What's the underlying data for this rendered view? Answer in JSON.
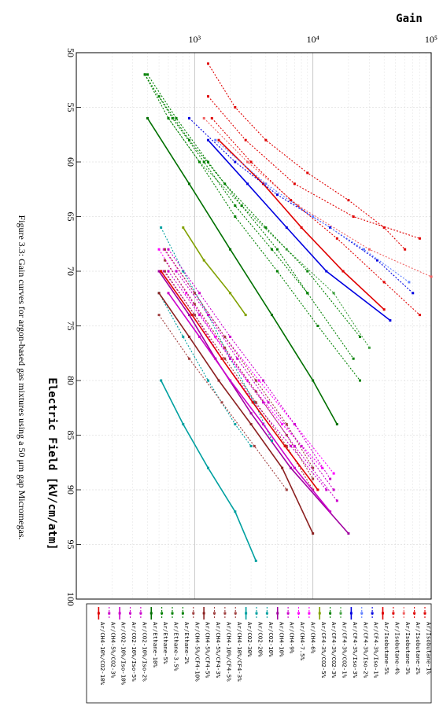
{
  "figure": {
    "caption": "Figure 3.3: Gain curves for argon-based gas mixtures using a 50 μm gap Micromegas."
  },
  "chart_data": {
    "type": "line",
    "xlabel": "Electric Field [kV/cm/atm]",
    "ylabel": "Gain",
    "xlim": [
      50,
      100
    ],
    "ylim": [
      100,
      100000
    ],
    "yscale": "log",
    "x_ticks": [
      "50",
      "55",
      "60",
      "65",
      "70",
      "75",
      "80",
      "85",
      "90",
      "95",
      "100"
    ],
    "y_ticks": [
      "10³",
      "10⁴",
      "10⁵"
    ],
    "grid": true,
    "legend_position": "right",
    "series": [
      {
        "name": "Ar/Isobutane-1%",
        "color": "#e00000",
        "style": "dotted",
        "x": [
          51,
          55,
          58,
          61,
          63.5,
          66,
          68
        ],
        "y": [
          1300,
          2200,
          4000,
          9000,
          20000,
          40000,
          60000
        ]
      },
      {
        "name": "Ar/Isobutane-2%",
        "color": "#e00000",
        "style": "dotted",
        "x": [
          54,
          58,
          62,
          65,
          67
        ],
        "y": [
          1300,
          2700,
          7000,
          22000,
          80000
        ]
      },
      {
        "name": "Ar/Isobutane-3%",
        "color": "#f06060",
        "style": "dotted",
        "x": [
          56,
          60,
          64,
          68,
          70.5
        ],
        "y": [
          1200,
          2800,
          7500,
          30000,
          100000
        ]
      },
      {
        "name": "Ar/Isobutane-4%",
        "color": "#e00000",
        "style": "dotted",
        "x": [
          56,
          60,
          63.5,
          67,
          71,
          74
        ],
        "y": [
          1400,
          3000,
          6500,
          16000,
          40000,
          80000
        ]
      },
      {
        "name": "Ar/Isobutane-5%",
        "color": "#e00000",
        "style": "solid",
        "x": [
          58,
          62,
          66,
          70,
          73.5
        ],
        "y": [
          1600,
          3800,
          8000,
          18000,
          40000
        ]
      },
      {
        "name": "Ar/CF4-3%/Iso-1%",
        "color": "#0000e0",
        "style": "dotted",
        "x": [
          56,
          60,
          63,
          66,
          69,
          72
        ],
        "y": [
          900,
          2200,
          5000,
          14000,
          35000,
          70000
        ]
      },
      {
        "name": "Ar/CF4-3%/Iso-2%",
        "color": "#6080ff",
        "style": "dotted",
        "x": [
          58,
          62,
          65,
          68,
          71
        ],
        "y": [
          1500,
          4000,
          10000,
          27000,
          65000
        ]
      },
      {
        "name": "Ar/CF4-3%/Iso-3%",
        "color": "#0000e0",
        "style": "solid",
        "x": [
          58,
          62,
          66,
          70,
          74.5
        ],
        "y": [
          1300,
          2800,
          6000,
          13000,
          45000
        ]
      },
      {
        "name": "Ar/CF4-3%/CO2-1%",
        "color": "#40a040",
        "style": "dotted",
        "x": [
          56,
          60,
          64,
          68,
          72,
          77
        ],
        "y": [
          600,
          1100,
          2500,
          6000,
          15000,
          30000
        ]
      },
      {
        "name": "Ar/CF4-3%/CO2-3%",
        "color": "#008000",
        "style": "dotted",
        "x": [
          54,
          58,
          62,
          66,
          70,
          76
        ],
        "y": [
          500,
          900,
          1800,
          4000,
          9000,
          25000
        ]
      },
      {
        "name": "Ar/CF4-3%/CO2-5%",
        "color": "#80a000",
        "style": "solid",
        "x": [
          66,
          69,
          72,
          74
        ],
        "y": [
          800,
          1200,
          2000,
          2700
        ]
      },
      {
        "name": "Ar/CH4-6%",
        "color": "#ff00ff",
        "style": "dotted",
        "x": [
          68,
          72,
          76,
          80,
          84,
          88.5
        ],
        "y": [
          550,
          1000,
          1800,
          3500,
          7000,
          15000
        ]
      },
      {
        "name": "Ar/CH4-7.5%",
        "color": "#ff00ff",
        "style": "dotted",
        "x": [
          68,
          72,
          76,
          80,
          84,
          88
        ],
        "y": [
          500,
          850,
          1500,
          2800,
          5500,
          12000
        ]
      },
      {
        "name": "Ar/CH4-9%",
        "color": "#cc00cc",
        "style": "dotted",
        "x": [
          70,
          74,
          78,
          82,
          86,
          90
        ],
        "y": [
          550,
          1000,
          1700,
          3200,
          6500,
          13000
        ]
      },
      {
        "name": "Ar/CH4-10%",
        "color": "#a000a0",
        "style": "solid",
        "x": [
          70,
          74,
          78,
          83,
          88,
          94
        ],
        "y": [
          500,
          900,
          1500,
          3000,
          6500,
          20000
        ]
      },
      {
        "name": "Ar/CO2-10%",
        "color": "#00a0a0",
        "style": "dotted",
        "x": [
          66,
          70,
          74,
          78,
          82,
          85.5
        ],
        "y": [
          520,
          800,
          1300,
          2000,
          3200,
          4500
        ]
      },
      {
        "name": "Ar/CO2-20%",
        "color": "#00a0a0",
        "style": "dotted",
        "x": [
          72,
          76,
          80,
          84,
          86
        ],
        "y": [
          500,
          800,
          1300,
          2200,
          3000
        ]
      },
      {
        "name": "Ar/CO2-30%",
        "color": "#00a0a0",
        "style": "solid",
        "x": [
          80,
          84,
          88,
          92,
          96.5
        ],
        "y": [
          520,
          800,
          1300,
          2200,
          3300
        ]
      },
      {
        "name": "Ar/CH4-10%/CF4-3%",
        "color": "#a04040",
        "style": "dotted",
        "x": [
          68,
          72,
          76,
          80,
          84,
          88
        ],
        "y": [
          560,
          1000,
          1800,
          3300,
          6000,
          10000
        ]
      },
      {
        "name": "Ar/CH4-10%/CF4-5%",
        "color": "#a04040",
        "style": "dotted",
        "x": [
          69,
          73,
          77,
          81,
          85,
          89
        ],
        "y": [
          560,
          1000,
          1800,
          3300,
          6000,
          10000
        ]
      },
      {
        "name": "Ar/CH4-5%/CF4-3%",
        "color": "#a04040",
        "style": "dotted",
        "x": [
          70,
          74,
          78,
          82,
          86,
          90
        ],
        "y": [
          560,
          1000,
          1800,
          3300,
          6000,
          10000
        ]
      },
      {
        "name": "Ar/CH4-5%/CF4-5%",
        "color": "#8b2020",
        "style": "solid",
        "x": [
          72,
          76,
          80,
          84,
          88,
          94
        ],
        "y": [
          500,
          900,
          1600,
          3000,
          5500,
          10000
        ]
      },
      {
        "name": "Ar/CH4-5%/CF4-10%",
        "color": "#a04040",
        "style": "dotted",
        "x": [
          74,
          78,
          82,
          86,
          90
        ],
        "y": [
          500,
          900,
          1700,
          3200,
          6000
        ]
      },
      {
        "name": "Ar/Ethane-2%",
        "color": "#008000",
        "style": "dotted",
        "x": [
          52,
          56,
          60,
          64,
          68,
          72
        ],
        "y": [
          400,
          700,
          1300,
          2500,
          5000,
          9000
        ]
      },
      {
        "name": "Ar/Ethane-3.5%",
        "color": "#008000",
        "style": "dotted",
        "x": [
          52,
          56,
          60,
          64,
          68,
          72,
          78
        ],
        "y": [
          380,
          650,
          1200,
          2200,
          4500,
          9000,
          22000
        ]
      },
      {
        "name": "Ar/Ethane-5%",
        "color": "#008000",
        "style": "dotted",
        "x": [
          52,
          56,
          60,
          65,
          70,
          75,
          80
        ],
        "y": [
          380,
          600,
          1100,
          2200,
          5000,
          11000,
          25000
        ]
      },
      {
        "name": "Ar/Ethane-10%",
        "color": "#007000",
        "style": "solid",
        "x": [
          56,
          62,
          68,
          74,
          80,
          84
        ],
        "y": [
          400,
          900,
          2000,
          4500,
          10000,
          16000
        ]
      },
      {
        "name": "Ar/CO2-10%/Iso-2%",
        "color": "#cc00cc",
        "style": "dotted",
        "x": [
          68,
          72,
          76,
          80,
          84,
          89
        ],
        "y": [
          600,
          1100,
          2000,
          3800,
          7000,
          14000
        ]
      },
      {
        "name": "Ar/CO2-10%/Iso-5%",
        "color": "#cc00cc",
        "style": "dotted",
        "x": [
          70,
          74,
          78,
          82,
          86,
          91
        ],
        "y": [
          600,
          1100,
          2000,
          3800,
          7000,
          16000
        ]
      },
      {
        "name": "Ar/CO2-10%/Iso-10%",
        "color": "#cc00cc",
        "style": "solid",
        "x": [
          72,
          76,
          80,
          84,
          88,
          92
        ],
        "y": [
          600,
          1100,
          2000,
          3800,
          7000,
          14000
        ]
      },
      {
        "name": "Ar/CH4-5%/CO2-3%",
        "color": "#cc00cc",
        "style": "dotted",
        "x": [
          70,
          74,
          78,
          82,
          86,
          90
        ],
        "y": [
          700,
          1300,
          2300,
          4200,
          8000,
          15000
        ]
      },
      {
        "name": "Ar/CH4-10%/CO2-10%",
        "color": "#e00000",
        "style": "solid",
        "x": [
          70,
          74,
          78,
          82,
          86,
          90
        ],
        "y": [
          520,
          950,
          1700,
          3100,
          5800,
          11000
        ]
      }
    ],
    "legend_entries": [
      "Ar/Isobutane-1%",
      "Ar/Isobutane-2%",
      "Ar/Isobutane-3%",
      "Ar/Isobutane-4%",
      "Ar/Isobutane-5%",
      "Ar/CF4-3%/Iso-1%",
      "Ar/CF4-3%/Iso-2%",
      "Ar/CF4-3%/Iso-3%",
      "Ar/CF4-3%/CO2-1%",
      "Ar/CF4-3%/CO2-3%",
      "Ar/CF4-3%/CO2-5%",
      "Ar/CH4-6%",
      "Ar/CH4-7.5%",
      "Ar/CH4-9%",
      "Ar/CH4-10%",
      "Ar/CO2-10%",
      "Ar/CO2-20%",
      "Ar/CO2-30%",
      "Ar/CH4-10%/CF4-3%",
      "Ar/CH4-10%/CF4-5%",
      "Ar/CH4-5%/CF4-3%",
      "Ar/CH4-5%/CF4-5%",
      "Ar/CH4-5%/CF4-10%",
      "Ar/Ethane-2%",
      "Ar/Ethane-3.5%",
      "Ar/Ethane-5%",
      "Ar/Ethane-10%",
      "Ar/CO2-10%/Iso-2%",
      "Ar/CO2-10%/Iso-5%",
      "Ar/CO2-10%/Iso-10%",
      "Ar/CH4-5%/CO2-3%",
      "Ar/CH4-10%/CO2-10%"
    ]
  }
}
